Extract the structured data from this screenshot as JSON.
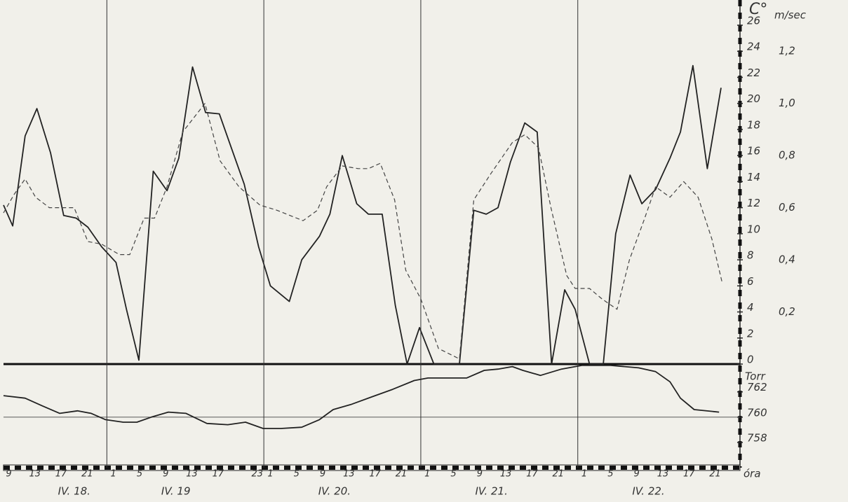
{
  "chart_data": [
    {
      "type": "line",
      "ylabel": "C°",
      "y2label": "m/sec",
      "xlim": [
        8.2,
        120.8
      ],
      "ylim": [
        0,
        26
      ],
      "yticks": [
        0,
        2,
        4,
        6,
        8,
        10,
        12,
        14,
        16,
        18,
        20,
        22,
        24,
        26
      ],
      "y2lim": [
        0,
        1.3
      ],
      "y2ticks": [
        {
          "value": 0.2,
          "label": "0,2"
        },
        {
          "value": 0.4,
          "label": "0,4"
        },
        {
          "value": 0.6,
          "label": "0,6"
        },
        {
          "value": 0.8,
          "label": "0,8"
        },
        {
          "value": 1.0,
          "label": "1,0"
        },
        {
          "value": 1.2,
          "label": "1,2"
        }
      ],
      "series": [
        {
          "color": "#222222",
          "dashed": false,
          "x": [
            8.2,
            9.6,
            11.5,
            13.3,
            15.4,
            17.4,
            19.3,
            21.1,
            23.2,
            25.4,
            27.0,
            28.9,
            31.1,
            33.2,
            35.0,
            37.1,
            39.1,
            41.2,
            43.1,
            45.0,
            47.2,
            49.0,
            51.9,
            53.8,
            56.5,
            58.1,
            60.0,
            62.2,
            64.0,
            66.1,
            68.1,
            69.9,
            71.8,
            74.0,
            77.9,
            80.1,
            82.0,
            83.8,
            85.7,
            87.9,
            89.8,
            92.0,
            94.0,
            95.6,
            97.8,
            99.9,
            101.8,
            104.0,
            105.8,
            107.9,
            110.1,
            111.7,
            113.6,
            115.8,
            117.9
          ],
          "values": [
            12.2,
            10.6,
            17.5,
            19.6,
            16.2,
            11.4,
            11.2,
            10.5,
            9.0,
            7.8,
            4.2,
            0.3,
            14.8,
            13.3,
            15.8,
            22.8,
            19.3,
            19.2,
            16.5,
            13.8,
            9.0,
            6.0,
            4.8,
            8.0,
            9.8,
            11.5,
            16.0,
            12.3,
            11.5,
            11.5,
            4.5,
            0,
            2.8,
            0,
            0,
            11.8,
            11.5,
            12.0,
            15.5,
            18.5,
            17.8,
            0,
            5.7,
            4.2,
            0,
            0,
            10.0,
            14.5,
            12.3,
            13.4,
            15.8,
            17.8,
            22.9,
            15.0,
            21.2
          ]
        },
        {
          "color": "#444444",
          "dashed": true,
          "axis": "y2",
          "x": [
            8.2,
            9.8,
            11.5,
            13.1,
            15.2,
            19.0,
            21.1,
            23.2,
            25.9,
            27.5,
            29.7,
            31.3,
            33.2,
            35.6,
            39.0,
            41.3,
            44.2,
            47.4,
            50.0,
            54.0,
            56.2,
            57.6,
            60.0,
            62.4,
            64.0,
            65.8,
            68.0,
            69.7,
            72.0,
            74.7,
            77.9,
            80.1,
            82.7,
            86.0,
            87.9,
            90.0,
            91.9,
            94.3,
            95.6,
            97.8,
            99.7,
            102.0,
            103.9,
            106.1,
            107.9,
            110.1,
            112.2,
            114.4,
            116.5,
            118.1
          ],
          "values": [
            0.58,
            0.65,
            0.71,
            0.64,
            0.6,
            0.6,
            0.47,
            0.46,
            0.42,
            0.42,
            0.56,
            0.56,
            0.68,
            0.89,
            1.0,
            0.78,
            0.68,
            0.61,
            0.59,
            0.55,
            0.59,
            0.68,
            0.76,
            0.75,
            0.75,
            0.77,
            0.63,
            0.36,
            0.25,
            0.06,
            0.02,
            0.63,
            0.73,
            0.85,
            0.88,
            0.83,
            0.6,
            0.34,
            0.29,
            0.29,
            0.25,
            0.21,
            0.4,
            0.55,
            0.68,
            0.64,
            0.7,
            0.64,
            0.48,
            0.31
          ]
        }
      ]
    },
    {
      "type": "line",
      "ylabel": "Torr",
      "xlabel": "óra",
      "xlim": [
        8.2,
        120.8
      ],
      "ylim": [
        756,
        764.2
      ],
      "yticks": [
        758,
        760,
        762
      ],
      "reference_line": 760,
      "xticks": [
        9,
        13,
        17,
        21,
        {
          "value": 25,
          "label": "1"
        },
        {
          "value": 29,
          "label": "5"
        },
        {
          "value": 33,
          "label": "9"
        },
        {
          "value": 37,
          "label": "13"
        },
        {
          "value": 41,
          "label": "17"
        },
        {
          "value": 47,
          "label": "23"
        },
        {
          "value": 49,
          "label": "1"
        },
        {
          "value": 53,
          "label": "5"
        },
        {
          "value": 57,
          "label": "9"
        },
        {
          "value": 61,
          "label": "13"
        },
        {
          "value": 65,
          "label": "17"
        },
        {
          "value": 69,
          "label": "21"
        },
        {
          "value": 73,
          "label": "1"
        },
        {
          "value": 77,
          "label": "5"
        },
        {
          "value": 81,
          "label": "9"
        },
        {
          "value": 85,
          "label": "13"
        },
        {
          "value": 89,
          "label": "17"
        },
        {
          "value": 93,
          "label": "21"
        },
        {
          "value": 97,
          "label": "1"
        },
        {
          "value": 101,
          "label": "5"
        },
        {
          "value": 105,
          "label": "9"
        },
        {
          "value": 109,
          "label": "13"
        },
        {
          "value": 113,
          "label": "17"
        },
        {
          "value": 117,
          "label": "21"
        }
      ],
      "days": [
        {
          "label": "IV. 18.",
          "start": 0
        },
        {
          "label": "IV. 19",
          "start": 24
        },
        {
          "label": "IV. 20.",
          "start": 48
        },
        {
          "label": "IV. 21.",
          "start": 72
        },
        {
          "label": "IV. 22.",
          "start": 96
        }
      ],
      "series": [
        {
          "color": "#222222",
          "dashed": false,
          "x": [
            8.2,
            11.5,
            14.1,
            16.8,
            19.5,
            21.6,
            23.8,
            26.5,
            28.6,
            30.8,
            33.4,
            36.1,
            39.3,
            42.5,
            45.2,
            47.9,
            50.6,
            53.8,
            56.5,
            58.6,
            61.3,
            64.5,
            67.7,
            71.0,
            73.1,
            76.3,
            79.0,
            81.7,
            83.8,
            86.0,
            87.6,
            90.3,
            93.5,
            96.7,
            101.0,
            105.3,
            107.9,
            110.1,
            111.7,
            113.8,
            117.6
          ],
          "values": [
            761.7,
            761.5,
            760.9,
            760.3,
            760.5,
            760.3,
            759.8,
            759.6,
            759.6,
            760.0,
            760.4,
            760.3,
            759.5,
            759.4,
            759.6,
            759.1,
            759.1,
            759.2,
            759.8,
            760.6,
            761.0,
            761.6,
            762.2,
            762.9,
            763.1,
            763.1,
            763.1,
            763.7,
            763.8,
            764.0,
            763.7,
            763.3,
            763.8,
            764.1,
            764.1,
            763.9,
            763.6,
            762.8,
            761.5,
            760.6,
            760.4
          ]
        }
      ]
    }
  ]
}
